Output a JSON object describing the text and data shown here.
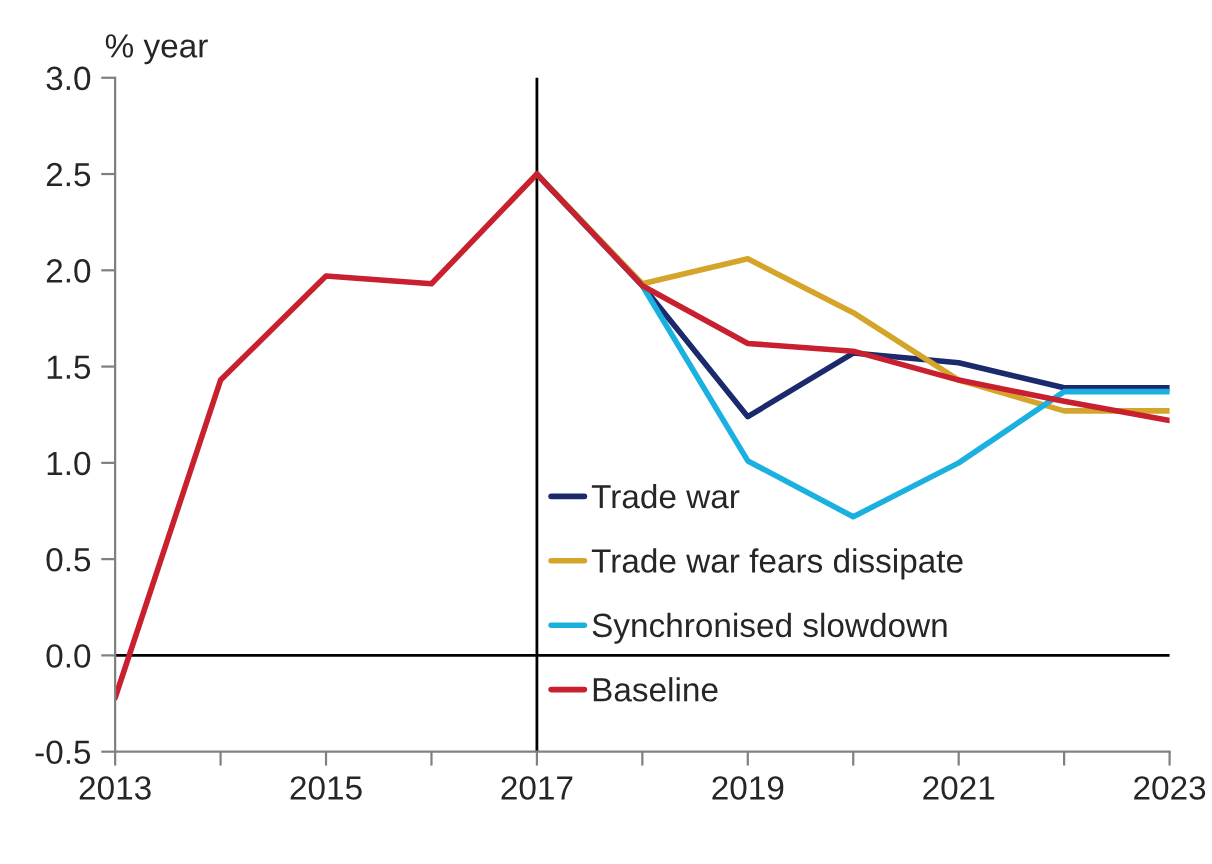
{
  "chart_data": {
    "type": "line",
    "ylabel": "% year",
    "x": [
      2013,
      2014,
      2015,
      2016,
      2017,
      2018,
      2019,
      2020,
      2021,
      2022,
      2023
    ],
    "series": [
      {
        "name": "Trade war",
        "color": "#1a2a6c",
        "values": [
          null,
          null,
          null,
          null,
          2.5,
          1.92,
          1.24,
          1.57,
          1.52,
          1.39,
          1.39
        ]
      },
      {
        "name": "Trade war fears dissipate",
        "color": "#d4a52a",
        "values": [
          null,
          null,
          null,
          null,
          2.5,
          1.93,
          2.06,
          1.78,
          1.43,
          1.27,
          1.27
        ]
      },
      {
        "name": "Synchronised slowdown",
        "color": "#1ab0e0",
        "values": [
          null,
          null,
          null,
          null,
          2.5,
          1.92,
          1.01,
          0.72,
          1.0,
          1.37,
          1.37
        ]
      },
      {
        "name": "Baseline",
        "color": "#c8202e",
        "values": [
          -0.22,
          1.43,
          1.97,
          1.93,
          2.5,
          1.92,
          1.62,
          1.58,
          1.43,
          1.32,
          1.22
        ]
      }
    ],
    "xlim": [
      2013,
      2023
    ],
    "xticks": [
      2013,
      {
        "value": 2014,
        "label": null
      },
      2015,
      {
        "value": 2016,
        "label": null
      },
      2017,
      {
        "value": 2018,
        "label": null
      },
      2019,
      {
        "value": 2020,
        "label": null
      },
      2021,
      {
        "value": 2022,
        "label": null
      },
      2023
    ],
    "ylim": [
      -0.5,
      3.0
    ],
    "yticks": [
      {
        "value": -0.5,
        "label": "-0.5"
      },
      {
        "value": 0,
        "label": "0.0"
      },
      {
        "value": 0.5,
        "label": "0.5"
      },
      {
        "value": 1.0,
        "label": "1.0"
      },
      {
        "value": 1.5,
        "label": "1.5"
      },
      {
        "value": 2.0,
        "label": "2.0"
      },
      {
        "value": 2.5,
        "label": "2.5"
      },
      {
        "value": 3.0,
        "label": "3.0"
      }
    ],
    "ref_lines": [
      {
        "axis": "x",
        "value": 2017,
        "color": "#000000"
      },
      {
        "axis": "y",
        "value": 0,
        "color": "#000000"
      }
    ],
    "grid": false,
    "legend": "bottom",
    "line_style": "solid"
  }
}
